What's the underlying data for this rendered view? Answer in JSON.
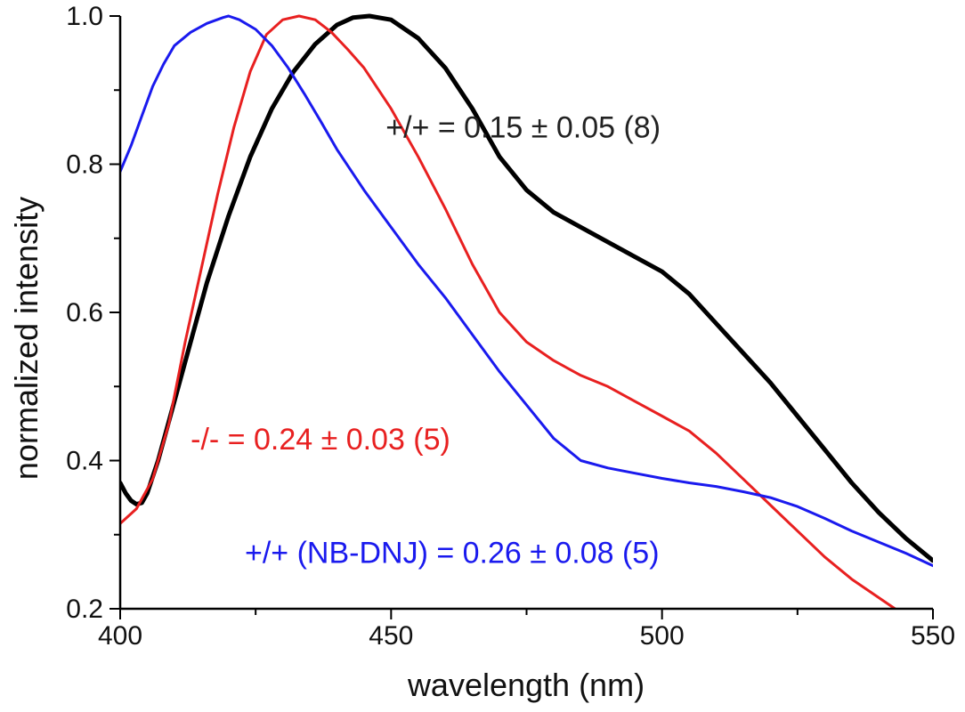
{
  "chart_data": {
    "type": "line",
    "title": "",
    "xlabel": "wavelength (nm)",
    "ylabel": "normalized intensity",
    "xlim": [
      400,
      550
    ],
    "ylim": [
      0.2,
      1.0
    ],
    "x_ticks": [
      400,
      450,
      500,
      550
    ],
    "x_tick_labels": [
      "400",
      "450",
      "500",
      "550"
    ],
    "y_ticks": [
      0.2,
      0.4,
      0.6,
      0.8,
      1.0
    ],
    "y_tick_labels": [
      "0.2",
      "0.4",
      "0.6",
      "0.8",
      "1.0"
    ],
    "grid": false,
    "legend": "none",
    "series": [
      {
        "color": "#000000",
        "x": [
          400,
          401,
          402,
          403,
          404,
          405,
          407,
          410,
          413,
          416,
          420,
          424,
          428,
          432,
          436,
          440,
          443,
          446,
          450,
          455,
          460,
          465,
          470,
          475,
          480,
          485,
          490,
          495,
          500,
          505,
          510,
          515,
          520,
          525,
          530,
          535,
          540,
          545,
          550
        ],
        "y": [
          0.37,
          0.356,
          0.346,
          0.341,
          0.343,
          0.356,
          0.4,
          0.48,
          0.56,
          0.64,
          0.73,
          0.81,
          0.875,
          0.925,
          0.962,
          0.988,
          0.998,
          1.0,
          0.995,
          0.97,
          0.93,
          0.875,
          0.81,
          0.765,
          0.735,
          0.715,
          0.695,
          0.675,
          0.655,
          0.625,
          0.585,
          0.545,
          0.505,
          0.46,
          0.415,
          0.37,
          0.33,
          0.295,
          0.265
        ]
      },
      {
        "color": "#e82020",
        "x": [
          400,
          403,
          406,
          409,
          412,
          415,
          418,
          421,
          424,
          427,
          430,
          433,
          436,
          439,
          442,
          445,
          450,
          455,
          460,
          465,
          470,
          475,
          480,
          485,
          490,
          495,
          500,
          505,
          510,
          515,
          520,
          525,
          530,
          535,
          540,
          543
        ],
        "y": [
          0.315,
          0.335,
          0.375,
          0.45,
          0.56,
          0.66,
          0.76,
          0.85,
          0.925,
          0.975,
          0.995,
          1.0,
          0.995,
          0.978,
          0.955,
          0.93,
          0.875,
          0.81,
          0.74,
          0.665,
          0.6,
          0.56,
          0.535,
          0.515,
          0.5,
          0.48,
          0.46,
          0.44,
          0.41,
          0.375,
          0.34,
          0.305,
          0.27,
          0.24,
          0.215,
          0.2
        ]
      },
      {
        "color": "#1a1aee",
        "x": [
          400,
          402,
          404,
          406,
          408,
          410,
          413,
          416,
          419,
          420,
          422,
          425,
          428,
          431,
          434,
          437,
          440,
          445,
          450,
          455,
          460,
          465,
          470,
          475,
          480,
          485,
          490,
          495,
          500,
          505,
          510,
          515,
          520,
          525,
          530,
          535,
          540,
          545,
          550
        ],
        "y": [
          0.79,
          0.825,
          0.865,
          0.905,
          0.935,
          0.96,
          0.978,
          0.99,
          0.998,
          1.0,
          0.995,
          0.982,
          0.96,
          0.93,
          0.895,
          0.858,
          0.82,
          0.765,
          0.715,
          0.665,
          0.62,
          0.57,
          0.52,
          0.475,
          0.43,
          0.4,
          0.39,
          0.383,
          0.376,
          0.37,
          0.365,
          0.358,
          0.35,
          0.338,
          0.322,
          0.305,
          0.29,
          0.275,
          0.258
        ]
      }
    ],
    "annotations": [
      {
        "text": "+/+ = 0.15 ± 0.05 (8)",
        "color": "#222222",
        "at_x": 449,
        "at_y": 0.836
      },
      {
        "text": "-/- = 0.24 ± 0.03 (5)",
        "color": "#e82020",
        "at_x": 413,
        "at_y": 0.415
      },
      {
        "text": "+/+ (NB-DNJ) = 0.26 ± 0.08 (5)",
        "color": "#1a1aee",
        "at_x": 423,
        "at_y": 0.262
      }
    ]
  }
}
